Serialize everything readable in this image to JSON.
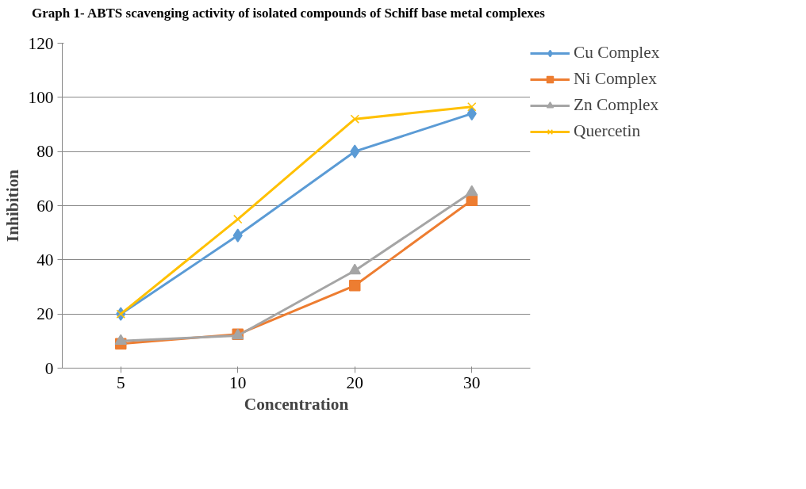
{
  "chart_data": {
    "type": "line",
    "title": "Graph 1- ABTS scavenging activity of isolated compounds of Schiff base metal complexes",
    "xlabel": "Concentration",
    "ylabel": "Inhibition",
    "categories": [
      "5",
      "10",
      "20",
      "30"
    ],
    "series": [
      {
        "name": "Cu Complex",
        "color": "#5b9bd5",
        "marker": "diamond",
        "values": [
          20,
          49,
          80,
          94
        ]
      },
      {
        "name": "Ni Complex",
        "color": "#ed7d31",
        "marker": "square",
        "values": [
          9,
          12.5,
          30.5,
          62
        ]
      },
      {
        "name": "Zn Complex",
        "color": "#a5a5a5",
        "marker": "triangle",
        "values": [
          10,
          12,
          36,
          65
        ]
      },
      {
        "name": "Quercetin",
        "color": "#ffc000",
        "marker": "cross",
        "values": [
          20,
          55,
          92,
          96.5
        ]
      }
    ],
    "ylim": [
      0,
      120
    ],
    "yticks": [
      0,
      20,
      40,
      60,
      80,
      100,
      120
    ],
    "grid": "y",
    "legend": "right",
    "line_style": "solid"
  }
}
